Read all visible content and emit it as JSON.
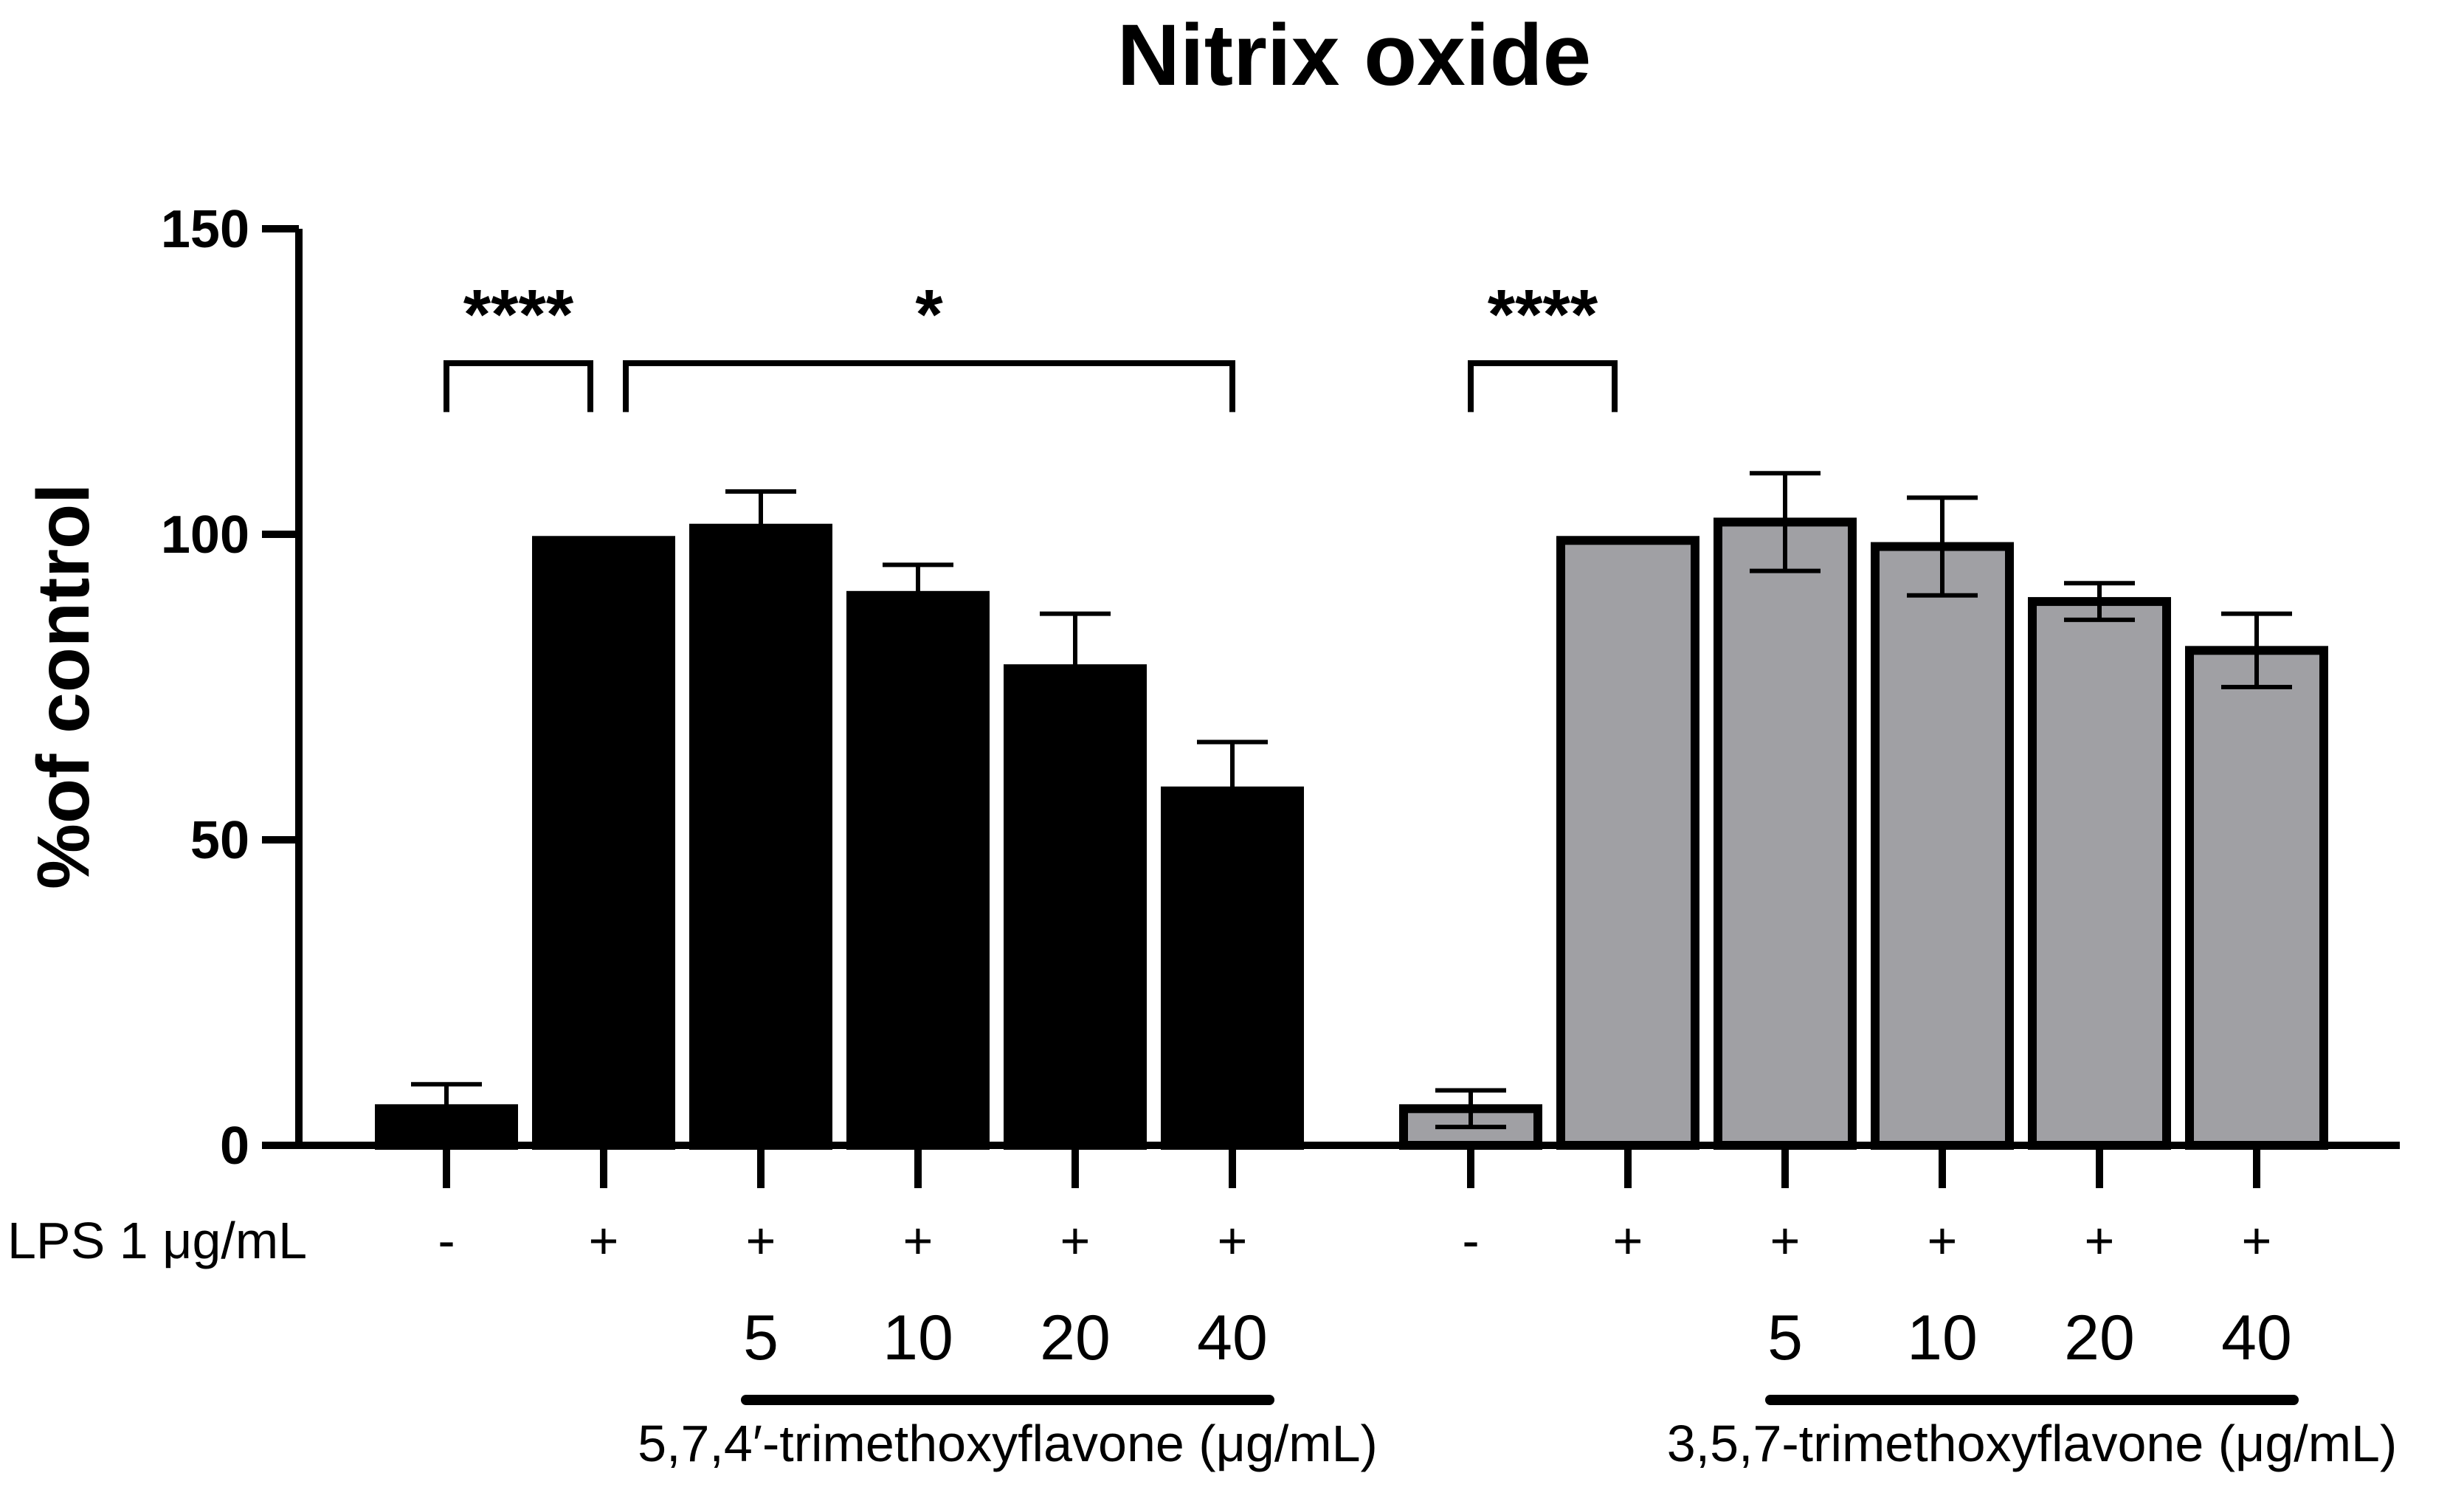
{
  "chart_data": {
    "type": "bar",
    "title": "Nitrix oxide",
    "ylabel": "%of control",
    "ylim": [
      0,
      150
    ],
    "yticks": [
      "0",
      "50",
      "100",
      "150"
    ],
    "lps_label": "LPS 1 μg/mL",
    "groups": [
      {
        "name": "5,7,4′-trimethoxyflavone (μg/mL)",
        "color": "#000000",
        "lps": [
          "-",
          "+",
          "+",
          "+",
          "+",
          "+"
        ],
        "concentrations": [
          "",
          "",
          "5",
          "10",
          "20",
          "40"
        ],
        "values": [
          6,
          99,
          101,
          90,
          78,
          58
        ],
        "errors": [
          4,
          0,
          6,
          5,
          9,
          8
        ]
      },
      {
        "name": "3,5,7-trimethoxyflavone  (μg/mL)",
        "color": "#a0a0a4",
        "lps": [
          "-",
          "+",
          "+",
          "+",
          "+",
          "+"
        ],
        "concentrations": [
          "",
          "",
          "5",
          "10",
          "20",
          "40"
        ],
        "values": [
          6,
          99,
          102,
          98,
          89,
          81
        ],
        "errors": [
          3,
          0,
          8,
          8,
          3,
          6
        ]
      }
    ],
    "significance": [
      {
        "group": 0,
        "from": 0,
        "to": 1,
        "label": "****"
      },
      {
        "group": 0,
        "from": 1,
        "to": 5,
        "label": "*"
      },
      {
        "group": 1,
        "from": 0,
        "to": 1,
        "label": "****"
      }
    ]
  }
}
